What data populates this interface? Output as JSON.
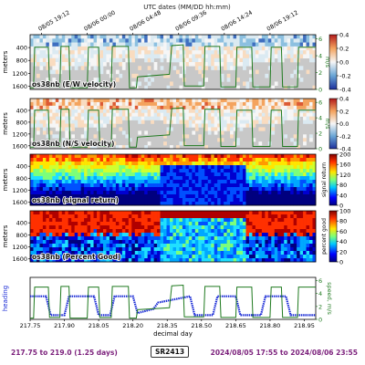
{
  "chart_data": [
    {
      "type": "heatmap",
      "panel_label": "os38nb (E/W velocity)",
      "ylabel": "meters",
      "ylim": [
        1700,
        0
      ],
      "yticks": [
        400,
        800,
        1200,
        1600
      ],
      "colorbar": {
        "min": -0.4,
        "max": 0.4,
        "ticks": [
          "0.4",
          "0.2",
          "0.0",
          "-0.2",
          "-0.4"
        ],
        "colormap": "diverging-blue-red"
      },
      "right_axis": {
        "label": "m/s",
        "ticks": [
          "6",
          "4",
          "2",
          "0"
        ],
        "range": [
          0,
          6.5
        ]
      },
      "overlay_series": {
        "name": "speed",
        "color": "#1f7a1f"
      }
    },
    {
      "type": "heatmap",
      "panel_label": "os38nb (N/S velocity)",
      "ylabel": "meters",
      "ylim": [
        1700,
        0
      ],
      "yticks": [
        400,
        800,
        1200,
        1600
      ],
      "colorbar": {
        "min": -0.4,
        "max": 0.4,
        "ticks": [
          "0.4",
          "0.2",
          "0.0",
          "-0.2",
          "-0.4"
        ],
        "colormap": "diverging-blue-red"
      },
      "right_axis": {
        "label": "m/s",
        "ticks": [
          "6",
          "4",
          "2",
          "0"
        ],
        "range": [
          0,
          6.5
        ]
      },
      "overlay_series": {
        "name": "speed",
        "color": "#1f7a1f"
      }
    },
    {
      "type": "heatmap",
      "panel_label": "os38nb (signal return)",
      "ylabel": "meters",
      "ylim": [
        1700,
        0
      ],
      "yticks": [
        400,
        800,
        1200,
        1600
      ],
      "colorbar": {
        "min": 0,
        "max": 200,
        "ticks": [
          "200",
          "160",
          "120",
          "80",
          "40",
          "0"
        ],
        "label": "signal return",
        "colormap": "jet"
      }
    },
    {
      "type": "heatmap",
      "panel_label": "os38nb (Percent Good)",
      "ylabel": "meters",
      "ylim": [
        1700,
        0
      ],
      "yticks": [
        400,
        800,
        1200,
        1600
      ],
      "colorbar": {
        "min": 0,
        "max": 100,
        "ticks": [
          "100",
          "80",
          "60",
          "40",
          "20",
          "0"
        ],
        "label": "percent good",
        "colormap": "jet"
      }
    },
    {
      "type": "line",
      "xlabel": "decimal day",
      "x_ticks": [
        217.75,
        217.9,
        218.05,
        218.2,
        218.35,
        218.5,
        218.65,
        218.8,
        218.95
      ],
      "x_tick_labels": [
        "217.75",
        "217.90",
        "218.05",
        "218.20",
        "218.35",
        "218.50",
        "218.65",
        "218.80",
        "218.95"
      ],
      "xlim": [
        217.75,
        219.0
      ],
      "ylabel_left": "heading",
      "ylabel_right": "speed, m/s",
      "right_ticks": [
        "6",
        "4",
        "2",
        "0"
      ],
      "right_range": [
        0,
        6.5
      ],
      "series": [
        {
          "name": "heading",
          "color": "#1a2bd6",
          "x": [
            217.75,
            217.82,
            217.84,
            217.9,
            217.92,
            218.03,
            218.05,
            218.1,
            218.12,
            218.2,
            218.22,
            218.29,
            218.31,
            218.45,
            218.47,
            218.55,
            218.57,
            218.65,
            218.67,
            218.76,
            218.78,
            218.87,
            218.89,
            219.0
          ],
          "y": [
            0.55,
            0.55,
            0.1,
            0.1,
            0.55,
            0.55,
            0.1,
            0.1,
            0.55,
            0.55,
            0.15,
            0.25,
            0.4,
            0.55,
            0.1,
            0.1,
            0.55,
            0.55,
            0.1,
            0.1,
            0.55,
            0.55,
            0.1,
            0.1
          ]
        },
        {
          "name": "speed",
          "color": "#1f7a1f",
          "x": [
            217.75,
            217.765,
            217.77,
            217.83,
            217.835,
            217.88,
            217.885,
            217.92,
            217.925,
            218.0,
            218.005,
            218.05,
            218.055,
            218.105,
            218.11,
            218.18,
            218.185,
            218.215,
            218.22,
            218.36,
            218.37,
            218.42,
            218.425,
            218.51,
            218.515,
            218.58,
            218.585,
            218.65,
            218.655,
            218.72,
            218.725,
            218.8,
            218.805,
            218.85,
            218.855,
            218.92,
            218.925,
            219.0
          ],
          "y": [
            0.2,
            0.2,
            5.0,
            5.0,
            0.3,
            0.3,
            5.1,
            5.1,
            0.2,
            0.2,
            5.0,
            5.0,
            0.3,
            0.3,
            5.1,
            5.1,
            0.2,
            0.2,
            1.5,
            1.8,
            5.2,
            5.3,
            0.4,
            0.4,
            5.1,
            5.1,
            0.3,
            0.3,
            5.0,
            5.0,
            0.3,
            0.3,
            5.0,
            5.0,
            0.3,
            0.3,
            5.0,
            5.0
          ]
        }
      ]
    }
  ],
  "top_axis": {
    "title": "UTC dates (MM/DD hh:mm)",
    "tick_labels": [
      "08/05 19:12",
      "08/06 00:00",
      "08/06 04:48",
      "08/06 09:36",
      "08/06 14:24",
      "08/06 19:12"
    ]
  },
  "footer": {
    "left": "217.75 to 219.0 (1.25 days)",
    "center": "SR2413",
    "right": "2024/08/05 17:55 to 2024/08/06 23:55"
  }
}
